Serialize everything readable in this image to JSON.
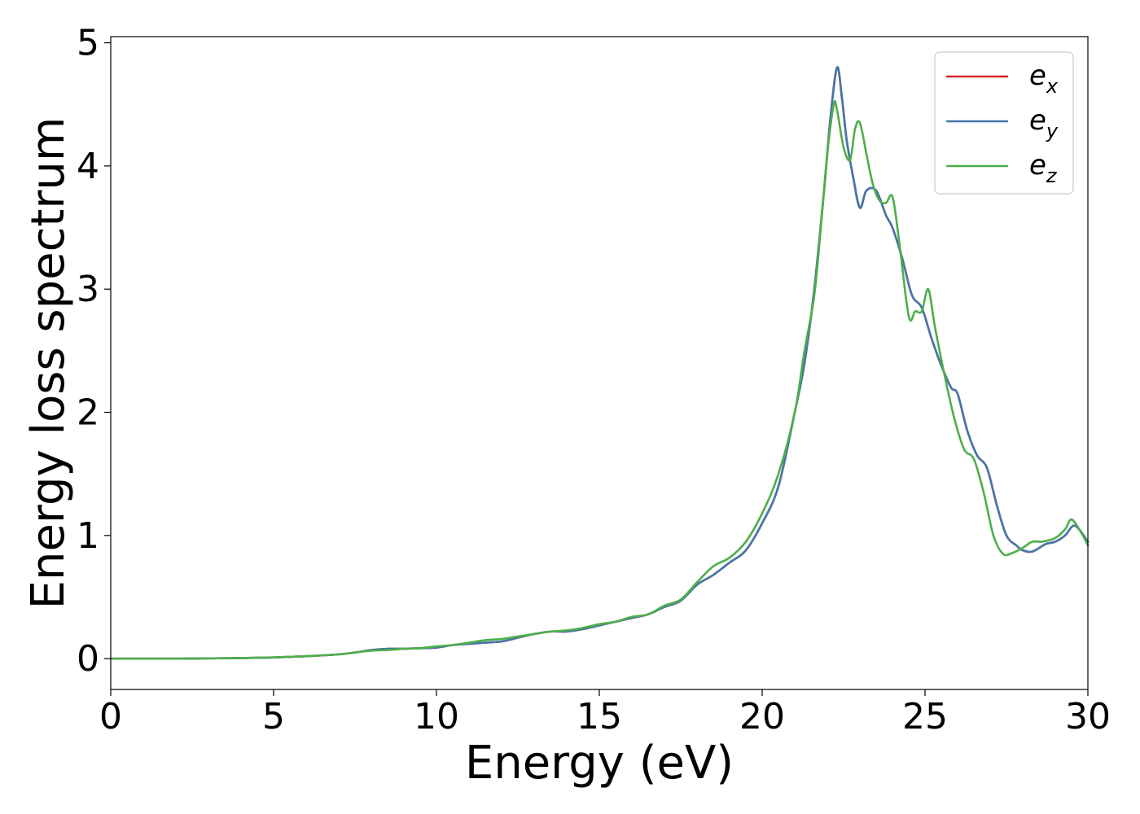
{
  "chart_data": {
    "type": "line",
    "title": "",
    "xlabel": "Energy (eV)",
    "ylabel": "Energy loss spectrum",
    "xlim": [
      0,
      30
    ],
    "ylim": [
      -0.25,
      5.05
    ],
    "xticks": [
      "0",
      "5",
      "10",
      "15",
      "20",
      "25",
      "30"
    ],
    "yticks": [
      "0",
      "1",
      "2",
      "3",
      "4",
      "5"
    ],
    "grid": false,
    "legend_position": "top-right",
    "series": [
      {
        "name": "e_x",
        "legend_base": "e",
        "legend_sub": "x",
        "color": "#d62728",
        "x": [
          0,
          2,
          4,
          5,
          6,
          7,
          7.5,
          8,
          8.5,
          9,
          9.5,
          10,
          10.5,
          11,
          11.5,
          12,
          12.5,
          13,
          13.5,
          14,
          14.5,
          15,
          15.5,
          16,
          16.5,
          17,
          17.5,
          18,
          18.5,
          19,
          19.5,
          20,
          20.5,
          21,
          21.3,
          21.6,
          21.9,
          22.1,
          22.3,
          22.45,
          22.6,
          22.8,
          23.0,
          23.2,
          23.5,
          23.8,
          24.0,
          24.3,
          24.6,
          24.9,
          25.2,
          25.5,
          25.8,
          26.0,
          26.3,
          26.6,
          26.9,
          27.2,
          27.5,
          27.8,
          28.0,
          28.3,
          28.7,
          29.0,
          29.3,
          29.6,
          30.0
        ],
        "y": [
          0,
          0,
          0.005,
          0.01,
          0.02,
          0.035,
          0.05,
          0.07,
          0.08,
          0.08,
          0.085,
          0.09,
          0.11,
          0.12,
          0.13,
          0.14,
          0.17,
          0.2,
          0.22,
          0.22,
          0.24,
          0.27,
          0.3,
          0.33,
          0.36,
          0.42,
          0.47,
          0.6,
          0.68,
          0.78,
          0.88,
          1.1,
          1.4,
          2.0,
          2.4,
          3.0,
          3.8,
          4.4,
          4.8,
          4.55,
          4.2,
          3.9,
          3.66,
          3.8,
          3.8,
          3.6,
          3.5,
          3.25,
          2.95,
          2.85,
          2.6,
          2.38,
          2.2,
          2.15,
          1.85,
          1.65,
          1.55,
          1.25,
          1.0,
          0.92,
          0.88,
          0.87,
          0.93,
          0.95,
          1.0,
          1.08,
          0.95
        ]
      },
      {
        "name": "e_y",
        "legend_base": "e",
        "legend_sub": "y",
        "color": "#4477aa",
        "x": [
          0,
          2,
          4,
          5,
          6,
          7,
          7.5,
          8,
          8.5,
          9,
          9.5,
          10,
          10.5,
          11,
          11.5,
          12,
          12.5,
          13,
          13.5,
          14,
          14.5,
          15,
          15.5,
          16,
          16.5,
          17,
          17.5,
          18,
          18.5,
          19,
          19.5,
          20,
          20.5,
          21,
          21.3,
          21.6,
          21.9,
          22.1,
          22.3,
          22.45,
          22.6,
          22.8,
          23.0,
          23.2,
          23.5,
          23.8,
          24.0,
          24.3,
          24.6,
          24.9,
          25.2,
          25.5,
          25.8,
          26.0,
          26.3,
          26.6,
          26.9,
          27.2,
          27.5,
          27.8,
          28.0,
          28.3,
          28.7,
          29.0,
          29.3,
          29.6,
          30.0
        ],
        "y": [
          0,
          0,
          0.005,
          0.01,
          0.02,
          0.035,
          0.05,
          0.07,
          0.08,
          0.08,
          0.085,
          0.09,
          0.11,
          0.12,
          0.13,
          0.14,
          0.17,
          0.2,
          0.22,
          0.22,
          0.24,
          0.27,
          0.3,
          0.33,
          0.36,
          0.42,
          0.47,
          0.6,
          0.68,
          0.78,
          0.88,
          1.1,
          1.4,
          2.0,
          2.4,
          3.0,
          3.8,
          4.4,
          4.8,
          4.55,
          4.2,
          3.9,
          3.66,
          3.8,
          3.8,
          3.6,
          3.5,
          3.25,
          2.95,
          2.85,
          2.6,
          2.38,
          2.2,
          2.15,
          1.85,
          1.65,
          1.55,
          1.25,
          1.0,
          0.92,
          0.88,
          0.87,
          0.93,
          0.95,
          1.0,
          1.08,
          0.95
        ]
      },
      {
        "name": "e_z",
        "legend_base": "e",
        "legend_sub": "z",
        "color": "#4daf4a",
        "x": [
          0,
          2,
          4,
          5,
          6,
          7,
          7.5,
          8,
          8.5,
          9,
          9.5,
          10,
          10.5,
          11,
          11.5,
          12,
          12.5,
          13,
          13.5,
          14,
          14.5,
          15,
          15.5,
          16,
          16.5,
          17,
          17.5,
          18,
          18.5,
          19,
          19.5,
          20,
          20.5,
          21,
          21.3,
          21.6,
          21.8,
          22.0,
          22.2,
          22.3,
          22.5,
          22.7,
          22.85,
          23.0,
          23.2,
          23.4,
          23.6,
          23.8,
          24.0,
          24.2,
          24.5,
          24.7,
          24.9,
          25.1,
          25.3,
          25.6,
          25.9,
          26.2,
          26.5,
          26.8,
          27.1,
          27.4,
          27.7,
          28.0,
          28.3,
          28.6,
          29.0,
          29.3,
          29.5,
          29.8,
          30.0
        ],
        "y": [
          0,
          0,
          0.005,
          0.01,
          0.02,
          0.035,
          0.05,
          0.065,
          0.07,
          0.08,
          0.085,
          0.1,
          0.11,
          0.13,
          0.15,
          0.16,
          0.18,
          0.2,
          0.22,
          0.23,
          0.25,
          0.28,
          0.3,
          0.34,
          0.36,
          0.43,
          0.48,
          0.62,
          0.75,
          0.82,
          0.95,
          1.18,
          1.5,
          2.0,
          2.5,
          2.95,
          3.5,
          4.1,
          4.5,
          4.45,
          4.15,
          4.05,
          4.3,
          4.35,
          4.1,
          3.85,
          3.72,
          3.7,
          3.75,
          3.4,
          2.78,
          2.82,
          2.82,
          3.0,
          2.7,
          2.3,
          1.95,
          1.7,
          1.62,
          1.35,
          1.0,
          0.85,
          0.86,
          0.9,
          0.95,
          0.95,
          0.98,
          1.05,
          1.13,
          1.02,
          0.92
        ]
      }
    ]
  }
}
